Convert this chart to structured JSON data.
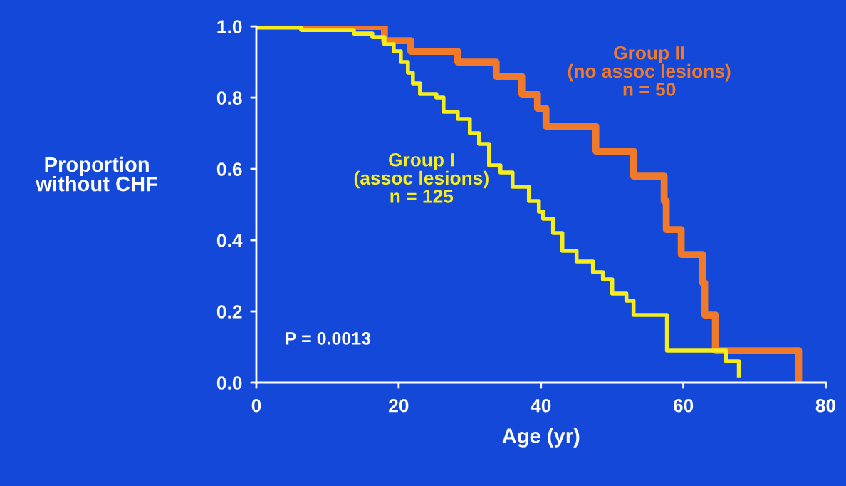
{
  "chart_data": {
    "type": "step",
    "xlabel": "Age (yr)",
    "ylabel": "Proportion\nwithout CHF",
    "xlim": [
      0,
      80
    ],
    "ylim": [
      0,
      1
    ],
    "xticks": [
      0,
      20,
      40,
      60,
      80
    ],
    "yticks": [
      {
        "value": 0,
        "label": "0.0"
      },
      {
        "value": 0.2,
        "label": "0.2"
      },
      {
        "value": 0.4,
        "label": "0.4"
      },
      {
        "value": 0.6,
        "label": "0.6"
      },
      {
        "value": 0.8,
        "label": "0.8"
      },
      {
        "value": 1,
        "label": "1.0"
      }
    ],
    "grid": false,
    "legend": false,
    "line_style": "solid",
    "marker": "none",
    "series": [
      {
        "name": "Group II\n(no assoc lesions)\nn = 50",
        "color": "#f07a2a",
        "x": [
          0,
          18,
          21.7,
          28.3,
          33.7,
          37.3,
          39.5,
          40.7,
          47.7,
          53,
          57.3,
          57.6,
          59.7,
          62.7,
          63,
          64.5,
          76.2
        ],
        "values": [
          1.0,
          0.96,
          0.93,
          0.9,
          0.86,
          0.81,
          0.77,
          0.72,
          0.65,
          0.58,
          0.51,
          0.43,
          0.36,
          0.28,
          0.19,
          0.09,
          0.0
        ]
      },
      {
        "name": "Group I\n(assoc lesions)\nn = 125",
        "color": "#f5ee1c",
        "x": [
          0,
          6.3,
          13.7,
          16.3,
          18,
          19.3,
          20.3,
          21.3,
          22,
          23,
          25.3,
          26.3,
          28.3,
          30,
          31.3,
          32.7,
          34.3,
          36,
          38.3,
          39.7,
          40.3,
          41.7,
          43,
          45,
          47.3,
          48.7,
          50,
          52,
          53,
          57.7,
          66,
          67.8
        ],
        "values": [
          1.0,
          0.99,
          0.98,
          0.97,
          0.95,
          0.93,
          0.9,
          0.87,
          0.84,
          0.81,
          0.8,
          0.76,
          0.74,
          0.7,
          0.67,
          0.61,
          0.59,
          0.55,
          0.51,
          0.48,
          0.46,
          0.42,
          0.37,
          0.34,
          0.31,
          0.29,
          0.25,
          0.23,
          0.19,
          0.09,
          0.06,
          0.02
        ]
      }
    ],
    "annotations": [
      "P = 0.0013"
    ]
  }
}
